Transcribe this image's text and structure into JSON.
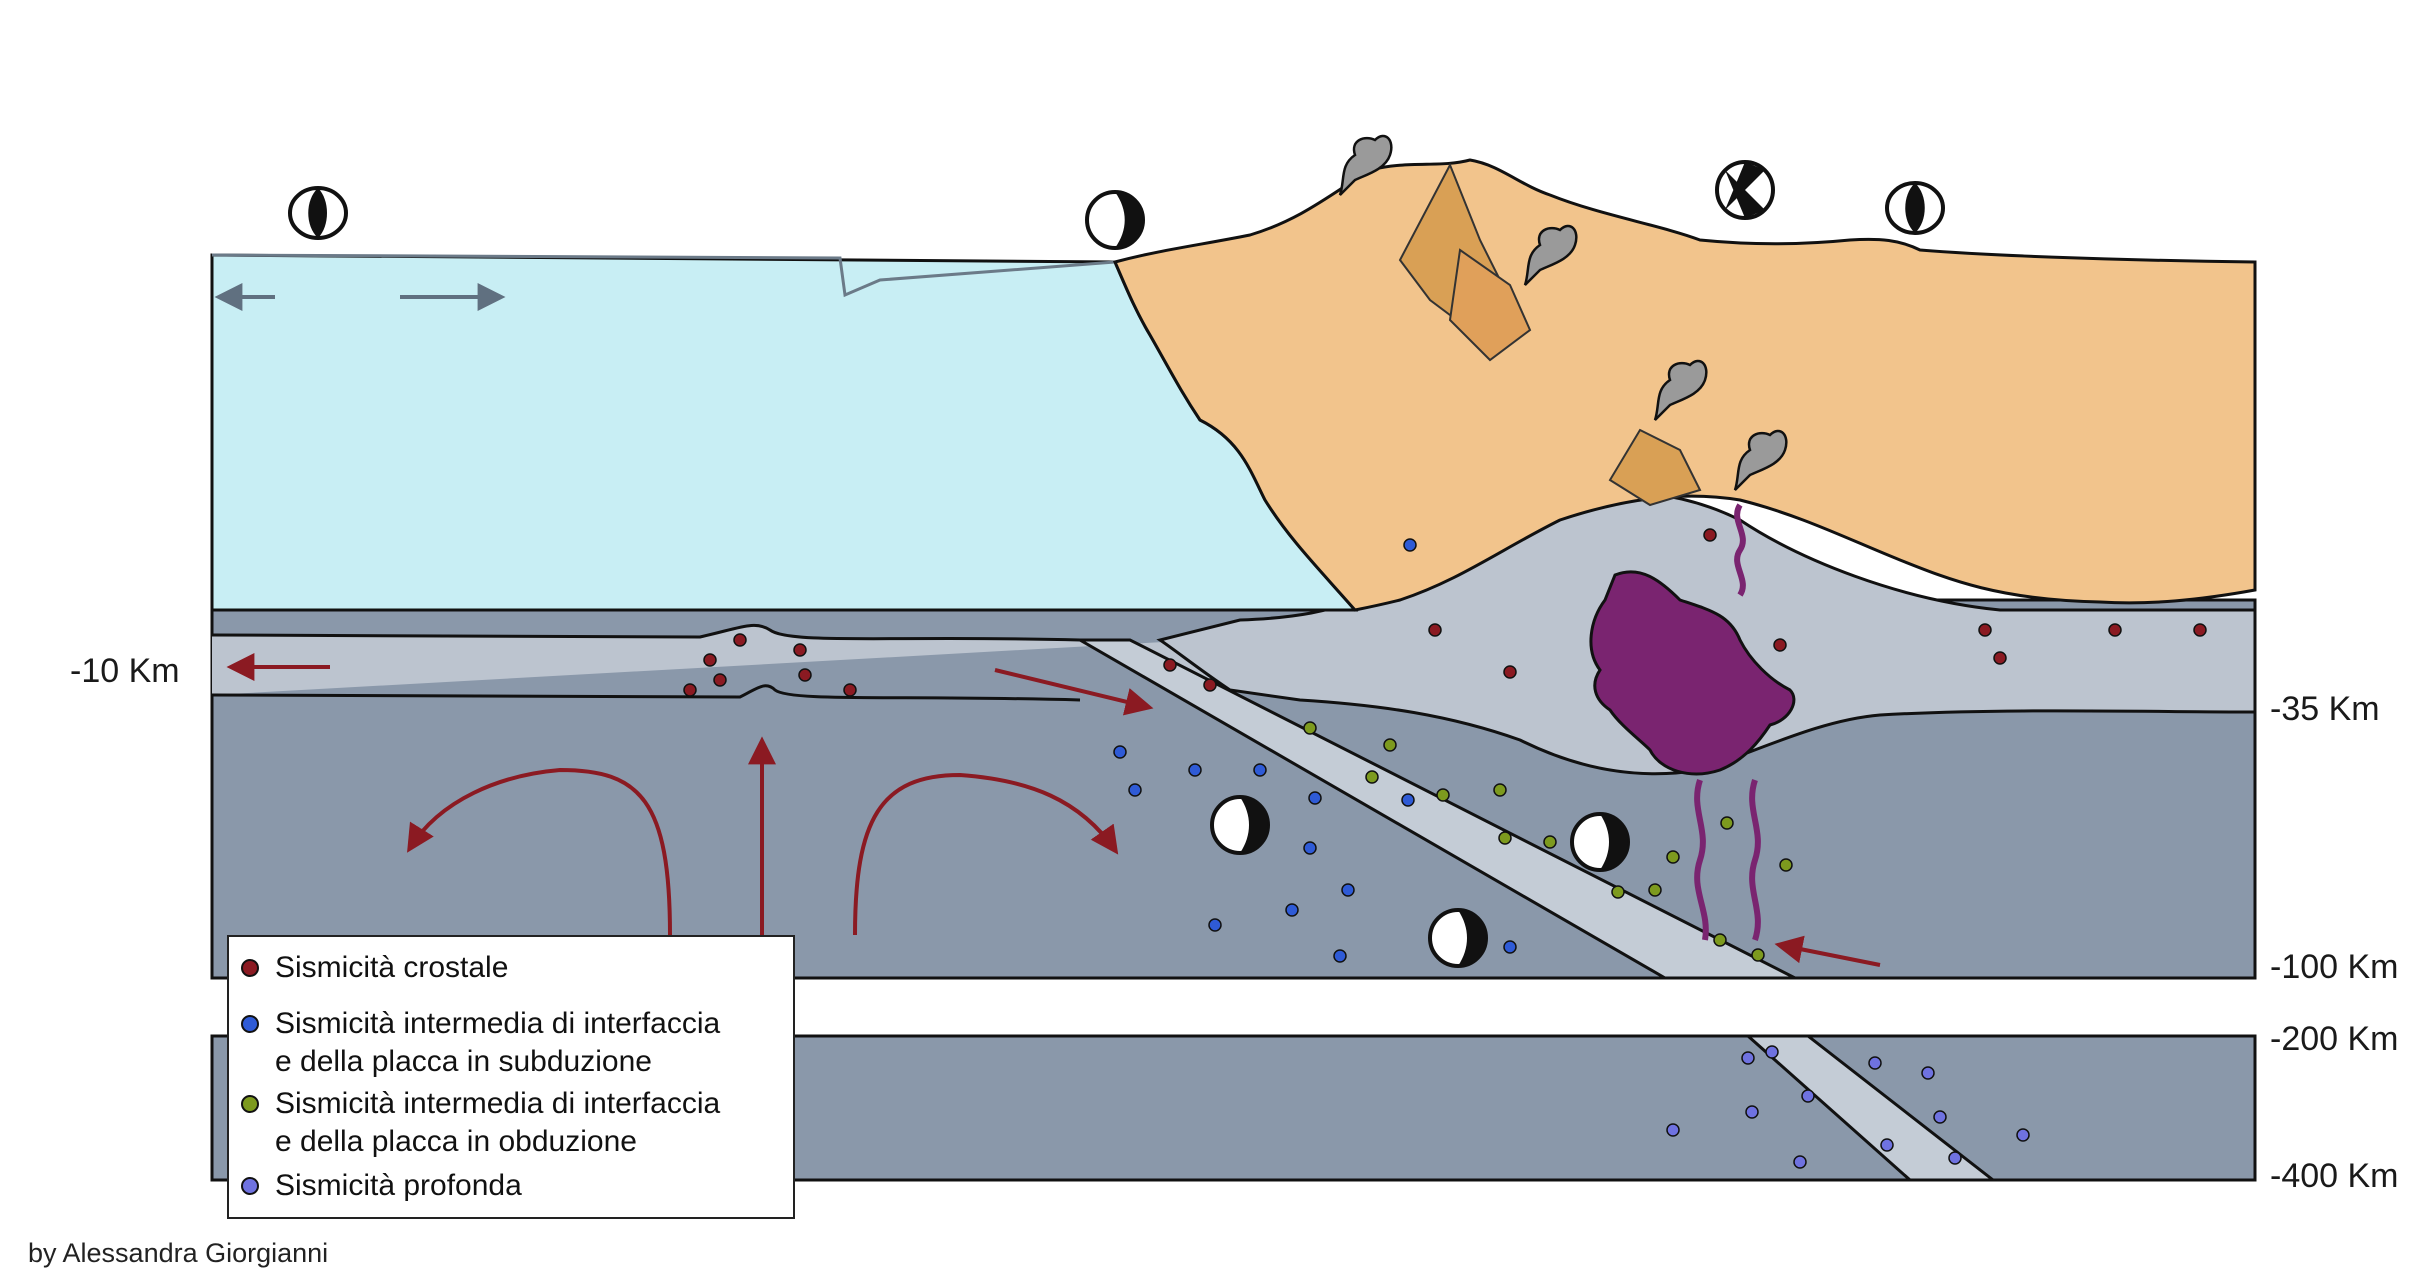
{
  "depth_labels": {
    "left_10": "-10 Km",
    "right_35": "-35 Km",
    "right_100": "-100 Km",
    "right_200": "-200 Km",
    "right_400": "-400 Km"
  },
  "legend": {
    "items": [
      {
        "lines": [
          "Sismicità crostale"
        ],
        "color": "#8b1a22"
      },
      {
        "lines": [
          "Sismicità intermedia di interfaccia",
          "e della placca in subduzione"
        ],
        "color": "#2f5bd6"
      },
      {
        "lines": [
          "Sismicità intermedia di interfaccia",
          "e della placca in obduzione"
        ],
        "color": "#7d9a1e"
      },
      {
        "lines": [
          "Sismicità profonda"
        ],
        "color": "#6f72e0"
      }
    ]
  },
  "credit": "by Alessandra Giorgianni",
  "colors": {
    "ocean": "#c8eef4",
    "continent": "#f2c48c",
    "crust": "#bcc4cf",
    "mantle": "#8a98aa",
    "slab": "#c4ccd6",
    "magma": "#7a2470",
    "arrow": "#8b1a22",
    "volcano_shade": "#e0a05a"
  }
}
